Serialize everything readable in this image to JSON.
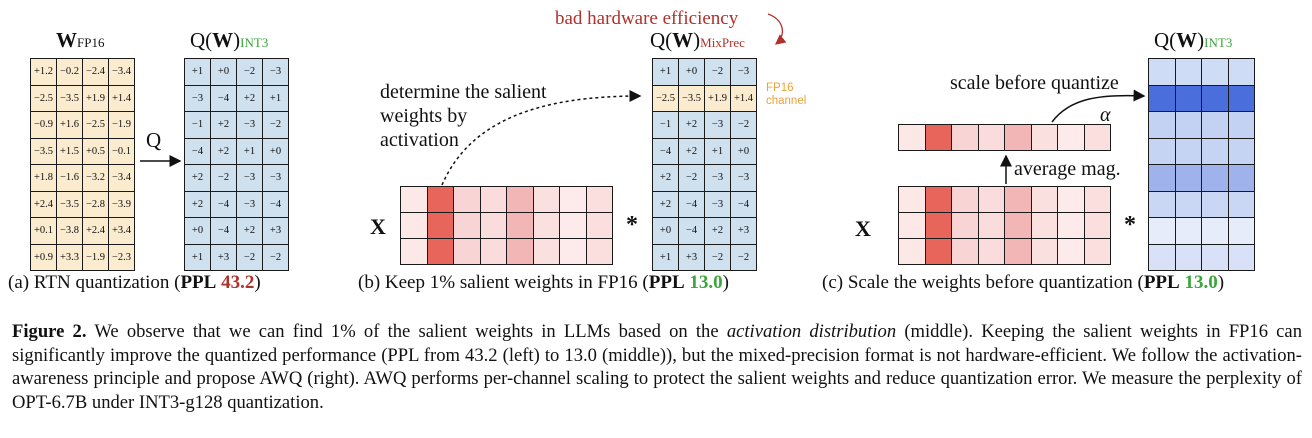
{
  "panel_a": {
    "w_label_main": "W",
    "w_label_sub": "FP16",
    "q_label_main": "Q(",
    "q_label_w": "W",
    "q_label_close": ")",
    "q_label_sub": "INT3",
    "q_arrow_label": "Q",
    "w_values": [
      [
        "+1.2",
        "−0.2",
        "−2.4",
        "−3.4"
      ],
      [
        "−2.5",
        "−3.5",
        "+1.9",
        "+1.4"
      ],
      [
        "−0.9",
        "+1.6",
        "−2.5",
        "−1.9"
      ],
      [
        "−3.5",
        "+1.5",
        "+0.5",
        "−0.1"
      ],
      [
        "+1.8",
        "−1.6",
        "−3.2",
        "−3.4"
      ],
      [
        "+2.4",
        "−3.5",
        "−2.8",
        "−3.9"
      ],
      [
        "+0.1",
        "−3.8",
        "+2.4",
        "+3.4"
      ],
      [
        "+0.9",
        "+3.3",
        "−1.9",
        "−2.3"
      ]
    ],
    "q_values": [
      [
        "+1",
        "+0",
        "−2",
        "−3"
      ],
      [
        "−3",
        "−4",
        "+2",
        "+1"
      ],
      [
        "−1",
        "+2",
        "−3",
        "−2"
      ],
      [
        "−4",
        "+2",
        "+1",
        "+0"
      ],
      [
        "+2",
        "−2",
        "−3",
        "−3"
      ],
      [
        "+2",
        "−4",
        "−3",
        "−4"
      ],
      [
        "+0",
        "−4",
        "+2",
        "+3"
      ],
      [
        "+1",
        "+3",
        "−2",
        "−2"
      ]
    ],
    "caption_pre": "(a) RTN quantization (",
    "caption_ppl": "PPL",
    "caption_value": "43.2",
    "caption_post": ")"
  },
  "panel_b": {
    "annotation_bad": "bad hardware efficiency",
    "q_label_sub": "MixPrec",
    "salient_text": [
      "determine the salient",
      "weights by",
      "activation"
    ],
    "fp16_channel": [
      "FP16",
      "channel"
    ],
    "x_label": "X",
    "mult_label": "*",
    "q_values": [
      [
        "+1",
        "+0",
        "−2",
        "−3"
      ],
      [
        "−2.5",
        "−3.5",
        "+1.9",
        "+1.4"
      ],
      [
        "−1",
        "+2",
        "−3",
        "−2"
      ],
      [
        "−4",
        "+2",
        "+1",
        "+0"
      ],
      [
        "+2",
        "−2",
        "−3",
        "−3"
      ],
      [
        "+2",
        "−4",
        "−3",
        "−4"
      ],
      [
        "+0",
        "−4",
        "+2",
        "+3"
      ],
      [
        "+1",
        "+3",
        "−2",
        "−2"
      ]
    ],
    "caption_pre": "(b) Keep 1% salient weights in FP16 (",
    "caption_ppl": "PPL",
    "caption_value": "13.0",
    "caption_post": ")"
  },
  "panel_c": {
    "q_label_sub": "INT3",
    "scale_text": "scale before quantize",
    "alpha": "α",
    "avg_text": "average mag.",
    "x_label": "X",
    "mult_label": "*",
    "caption_pre": "(c) Scale the weights before quantization (",
    "caption_ppl": "PPL",
    "caption_value": "13.0",
    "caption_post": ")"
  },
  "colors": {
    "fp16_cell": "#fbecd0",
    "int_cell": "#cfe0ef",
    "green": "#3ca53c",
    "red": "#b0302a",
    "orange": "#e8a23a"
  },
  "figure_caption": {
    "label": "Figure 2.",
    "part1": " We observe that we can find 1% of the salient weights in LLMs based on the ",
    "italic": "activation distribution",
    "part2": " (middle). Keeping the salient weights in FP16 can significantly improve the quantized performance (PPL from 43.2 (left) to 13.0 (middle)), but the mixed-precision format is not hardware-efficient. We follow the activation-awareness principle and propose AWQ (right). AWQ performs per-channel scaling to protect the salient weights and reduce quantization error. We measure the perplexity of OPT-6.7B under INT3-g128 quantization."
  }
}
